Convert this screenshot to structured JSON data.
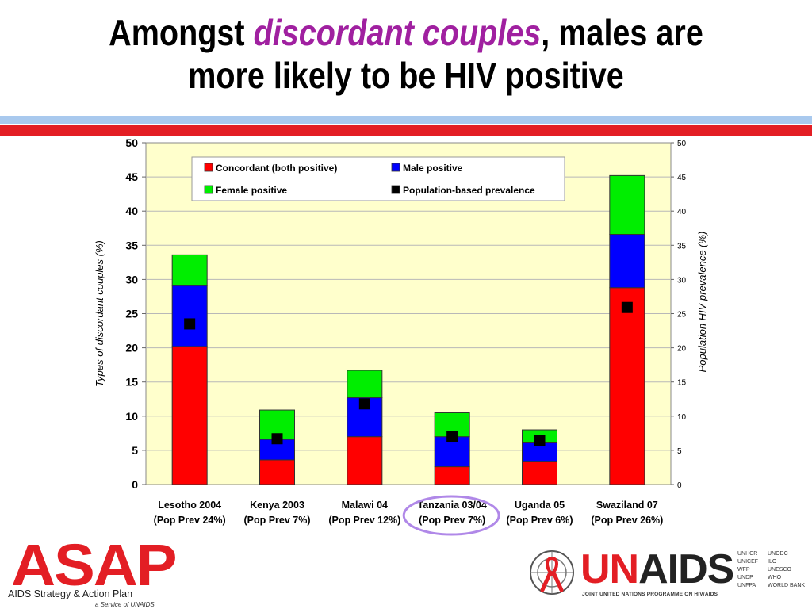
{
  "title": {
    "part1": "Amongst ",
    "emphasis": "discordant couples",
    "part2": ", males are",
    "line2": "more likely to be HIV positive"
  },
  "colors": {
    "concordant": "#ff0000",
    "male": "#0000ff",
    "female": "#00ee00",
    "prevalence": "#000000",
    "plot_bg": "#ffffcc",
    "highlight": "#b088e8"
  },
  "chart_data": {
    "type": "bar",
    "stacked": true,
    "categories": [
      [
        "Lesotho 2004",
        "(Pop Prev 24%)"
      ],
      [
        "Kenya 2003",
        "(Pop Prev 7%)"
      ],
      [
        "Malawi 04",
        "(Pop Prev 12%)"
      ],
      [
        "Tanzania 03/04",
        "(Pop Prev 7%)"
      ],
      [
        "Uganda 05",
        "(Pop Prev 6%)"
      ],
      [
        "Swaziland 07",
        "(Pop Prev 26%)"
      ]
    ],
    "series": [
      {
        "name": "Concordant (both positive)",
        "values": [
          20.2,
          3.6,
          7.0,
          2.6,
          3.4,
          28.8
        ]
      },
      {
        "name": "Male positive",
        "values": [
          8.9,
          3.0,
          5.7,
          4.4,
          2.7,
          7.8
        ]
      },
      {
        "name": "Female positive",
        "values": [
          4.5,
          4.3,
          4.0,
          3.5,
          1.9,
          8.6
        ]
      }
    ],
    "overlay": {
      "name": "Population-based prevalence",
      "values": [
        23.5,
        6.7,
        11.8,
        7.0,
        6.4,
        25.9
      ]
    },
    "ylabel": "Types of discordant couples (%)",
    "y2label": "Population HIV prevalence (%)",
    "ylim": [
      0,
      50
    ],
    "y2lim": [
      0,
      50
    ],
    "yticks": [
      0,
      5,
      10,
      15,
      20,
      25,
      30,
      35,
      40,
      45,
      50
    ],
    "legend_position": "top",
    "highlighted_category": "Tanzania 03/04"
  },
  "logos": {
    "asap": "ASAP",
    "asap_subtitle": "AIDS Strategy & Action Plan",
    "asap_service": "a Service of UNAIDS",
    "unaids": "UNAIDS",
    "unaids_subtitle": "JOINT UNITED NATIONS PROGRAMME ON HIV/AIDS",
    "cosponsors_col1": "UNHCR\nUNICEF\nWFP\nUNDP\nUNFPA",
    "cosponsors_col2": "UNODC\nILO\nUNESCO\nWHO\nWORLD BANK"
  }
}
